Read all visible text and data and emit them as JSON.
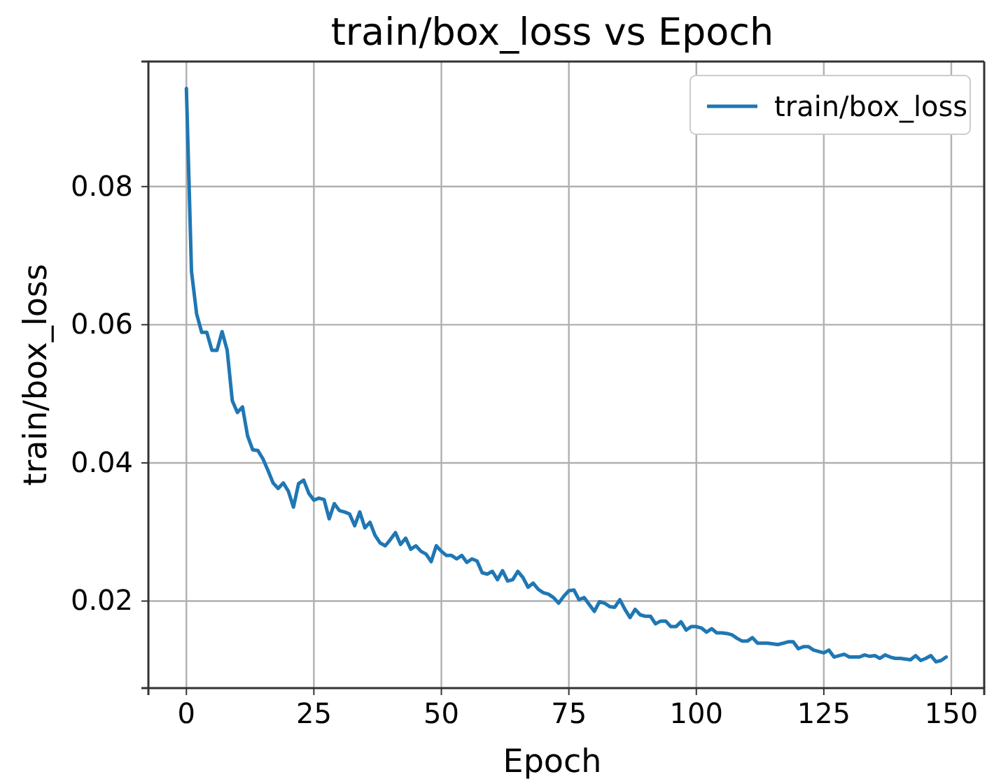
{
  "chart_data": {
    "type": "line",
    "title": "train/box_loss vs Epoch",
    "xlabel": "Epoch",
    "ylabel": "train/box_loss",
    "xlim": [
      -7.45,
      156.45
    ],
    "xticks": [
      0,
      25,
      50,
      75,
      100,
      125,
      150
    ],
    "ylim": [
      0.0074,
      0.0981
    ],
    "yticks": [
      0.02,
      0.04,
      0.06,
      0.08
    ],
    "grid": true,
    "legend": "top right",
    "line_style": "solid",
    "x": [
      0,
      1,
      2,
      3,
      4,
      5,
      6,
      7,
      8,
      9,
      10,
      11,
      12,
      13,
      14,
      15,
      16,
      17,
      18,
      19,
      20,
      21,
      22,
      23,
      24,
      25,
      26,
      27,
      28,
      29,
      30,
      31,
      32,
      33,
      34,
      35,
      36,
      37,
      38,
      39,
      40,
      41,
      42,
      43,
      44,
      45,
      46,
      47,
      48,
      49,
      50,
      51,
      52,
      53,
      54,
      55,
      56,
      57,
      58,
      59,
      60,
      61,
      62,
      63,
      64,
      65,
      66,
      67,
      68,
      69,
      70,
      71,
      72,
      73,
      74,
      75,
      76,
      77,
      78,
      79,
      80,
      81,
      82,
      83,
      84,
      85,
      86,
      87,
      88,
      89,
      90,
      91,
      92,
      93,
      94,
      95,
      96,
      97,
      98,
      99,
      100,
      101,
      102,
      103,
      104,
      105,
      106,
      107,
      108,
      109,
      110,
      111,
      112,
      113,
      114,
      115,
      116,
      117,
      118,
      119,
      120,
      121,
      122,
      123,
      124,
      125,
      126,
      127,
      128,
      129,
      130,
      131,
      132,
      133,
      134,
      135,
      136,
      137,
      138,
      139,
      140,
      141,
      142,
      143,
      144,
      145,
      146,
      147,
      148,
      149
    ],
    "series": [
      {
        "name": "train/box_loss",
        "color": "#1f77b4",
        "values": [
          0.0942,
          0.0677,
          0.0616,
          0.0589,
          0.0589,
          0.0563,
          0.0563,
          0.059,
          0.0563,
          0.049,
          0.0473,
          0.0481,
          0.0439,
          0.0419,
          0.0418,
          0.0406,
          0.0389,
          0.0371,
          0.0363,
          0.0371,
          0.0359,
          0.0336,
          0.037,
          0.0375,
          0.0356,
          0.0346,
          0.0349,
          0.0347,
          0.0319,
          0.0341,
          0.0331,
          0.0329,
          0.0326,
          0.0309,
          0.0329,
          0.0306,
          0.0314,
          0.0295,
          0.0284,
          0.028,
          0.0289,
          0.0299,
          0.0282,
          0.0291,
          0.0275,
          0.028,
          0.0272,
          0.0268,
          0.0257,
          0.028,
          0.0272,
          0.0266,
          0.0266,
          0.0261,
          0.0266,
          0.0256,
          0.0261,
          0.0258,
          0.0241,
          0.0239,
          0.0243,
          0.0231,
          0.0244,
          0.0229,
          0.0231,
          0.0243,
          0.0234,
          0.022,
          0.0226,
          0.0217,
          0.0212,
          0.021,
          0.0205,
          0.0197,
          0.0207,
          0.0215,
          0.0216,
          0.0202,
          0.0205,
          0.0195,
          0.0185,
          0.0199,
          0.0197,
          0.0192,
          0.0191,
          0.0202,
          0.0188,
          0.0176,
          0.0188,
          0.018,
          0.0178,
          0.0178,
          0.0167,
          0.0171,
          0.0171,
          0.0163,
          0.0163,
          0.017,
          0.0158,
          0.0163,
          0.0163,
          0.0161,
          0.0155,
          0.016,
          0.0154,
          0.0154,
          0.0153,
          0.0151,
          0.0146,
          0.0142,
          0.0142,
          0.0147,
          0.0139,
          0.0139,
          0.0139,
          0.0138,
          0.0137,
          0.0139,
          0.0141,
          0.0141,
          0.0131,
          0.0134,
          0.0134,
          0.0129,
          0.0127,
          0.0125,
          0.0129,
          0.0119,
          0.0121,
          0.0123,
          0.0119,
          0.0119,
          0.0119,
          0.0122,
          0.012,
          0.0121,
          0.0117,
          0.0122,
          0.0119,
          0.0117,
          0.0117,
          0.0116,
          0.0115,
          0.0121,
          0.0114,
          0.0117,
          0.0121,
          0.0112,
          0.0114,
          0.0119
        ]
      }
    ]
  }
}
